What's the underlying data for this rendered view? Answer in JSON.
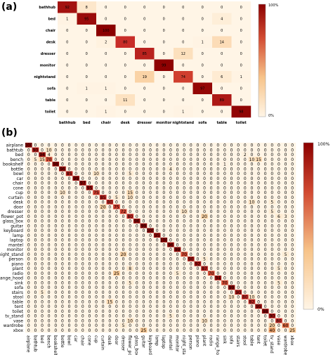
{
  "chart_data": [
    {
      "type": "heatmap",
      "panel_label": "(a)",
      "colorbar": {
        "max_label": "100%",
        "min_label": "0%",
        "low_color": "#fff5e6",
        "high_color": "#8b0000"
      },
      "rows": [
        "bathhub",
        "bed",
        "chair",
        "desk",
        "dresser",
        "monitor",
        "nightstand",
        "sofa",
        "table",
        "toilet"
      ],
      "cols": [
        "bathhub",
        "bed",
        "chair",
        "desk",
        "dresser",
        "monitor",
        "nightstand",
        "sofa",
        "table",
        "toilet"
      ],
      "values": [
        [
          92,
          8,
          0,
          0,
          0,
          0,
          0,
          0,
          0,
          0
        ],
        [
          1,
          95,
          0,
          0,
          0,
          0,
          0,
          0,
          4,
          0
        ],
        [
          0,
          0,
          100,
          0,
          0,
          0,
          0,
          0,
          0,
          0
        ],
        [
          0,
          0,
          2,
          80,
          0,
          0,
          0,
          1,
          14,
          0
        ],
        [
          0,
          0,
          0,
          0,
          85,
          0,
          12,
          0,
          0,
          0
        ],
        [
          0,
          0,
          0,
          0,
          0,
          99,
          0,
          0,
          0,
          0
        ],
        [
          0,
          0,
          0,
          0,
          19,
          0,
          74,
          0,
          6,
          1
        ],
        [
          0,
          1,
          1,
          0,
          0,
          0,
          0,
          97,
          0,
          0
        ],
        [
          0,
          0,
          0,
          11,
          0,
          0,
          0,
          0,
          89,
          0
        ],
        [
          0,
          0,
          1,
          0,
          0,
          0,
          1,
          0,
          0,
          98
        ]
      ]
    },
    {
      "type": "heatmap",
      "panel_label": "(b)",
      "colorbar": {
        "max_label": "100%",
        "min_label": "0%",
        "low_color": "#fff5e6",
        "high_color": "#8b0000"
      },
      "rows": [
        "airplane",
        "bathtub",
        "bed",
        "bench",
        "bookshelf",
        "bottle",
        "bowl",
        "car",
        "chair",
        "cone",
        "cup",
        "curtain",
        "desk",
        "door",
        "dresser",
        "flower_pot",
        "glass_box",
        "guitar",
        "keyboard",
        "lamp",
        "laptop",
        "mantel",
        "monitor",
        "night_stand",
        "person",
        "piano",
        "plant",
        "radio",
        "range_hood",
        "sink",
        "sofa",
        "stairs",
        "stool",
        "table",
        "tent",
        "toilet",
        "tv_stand",
        "vase",
        "wardrobe",
        "xbox"
      ],
      "cols": [
        "airplane",
        "bathtub",
        "bed",
        "bench",
        "bookshelf",
        "bottle",
        "bowl",
        "car",
        "chair",
        "cone",
        "cup",
        "curtain",
        "desk",
        "door",
        "dresser",
        "flower_pot",
        "glass_box",
        "guitar",
        "keyboard",
        "lamp",
        "laptop",
        "mantel",
        "monitor",
        "night_stand",
        "person",
        "piano",
        "plant",
        "radio",
        "range_hood",
        "sink",
        "sofa",
        "stairs",
        "stool",
        "table",
        "tent",
        "toilet",
        "tv_stand",
        "vase",
        "wardrobe",
        "xbox"
      ],
      "diagonal": [
        100,
        90,
        94,
        70,
        98,
        96,
        85,
        99,
        97,
        95,
        75,
        85,
        80,
        75,
        72,
        80,
        96,
        99,
        100,
        95,
        100,
        96,
        99,
        70,
        90,
        92,
        87,
        70,
        94,
        70,
        99,
        90,
        80,
        82,
        95,
        98,
        90,
        80,
        60,
        25
      ],
      "off_diagonal": [
        {
          "r": 1,
          "c": 3,
          "v": 10
        },
        {
          "r": 2,
          "c": 3,
          "v": 4
        },
        {
          "r": 2,
          "c": 32,
          "v": 2
        },
        {
          "r": 3,
          "c": 1,
          "v": 5
        },
        {
          "r": 3,
          "c": 2,
          "v": 15
        },
        {
          "r": 3,
          "c": 33,
          "v": 10
        },
        {
          "r": 3,
          "c": 34,
          "v": 15
        },
        {
          "r": 4,
          "c": 29,
          "v": 1
        },
        {
          "r": 5,
          "c": 21,
          "v": 4
        },
        {
          "r": 6,
          "c": 10,
          "v": 10
        },
        {
          "r": 6,
          "c": 15,
          "v": 5
        },
        {
          "r": 10,
          "c": 5,
          "v": 10
        },
        {
          "r": 10,
          "c": 15,
          "v": 15
        },
        {
          "r": 11,
          "c": 13,
          "v": 5
        },
        {
          "r": 11,
          "c": 15,
          "v": 10
        },
        {
          "r": 12,
          "c": 33,
          "v": 10
        },
        {
          "r": 12,
          "c": 36,
          "v": 5
        },
        {
          "r": 13,
          "c": 11,
          "v": 20
        },
        {
          "r": 14,
          "c": 23,
          "v": 10
        },
        {
          "r": 14,
          "c": 36,
          "v": 5
        },
        {
          "r": 15,
          "c": 26,
          "v": 20
        },
        {
          "r": 15,
          "c": 37,
          "v": 6
        },
        {
          "r": 15,
          "c": 38,
          "v": 3
        },
        {
          "r": 23,
          "c": 14,
          "v": 20
        },
        {
          "r": 23,
          "c": 38,
          "v": 5
        },
        {
          "r": 24,
          "c": 26,
          "v": 5
        },
        {
          "r": 26,
          "c": 15,
          "v": 8
        },
        {
          "r": 26,
          "c": 37,
          "v": 5
        },
        {
          "r": 27,
          "c": 13,
          "v": 25
        },
        {
          "r": 27,
          "c": 22,
          "v": 5
        },
        {
          "r": 29,
          "c": 15,
          "v": 5
        },
        {
          "r": 29,
          "c": 37,
          "v": 5
        },
        {
          "r": 31,
          "c": 2,
          "v": 5
        },
        {
          "r": 32,
          "c": 30,
          "v": 10
        },
        {
          "r": 32,
          "c": 33,
          "v": 10
        },
        {
          "r": 33,
          "c": 12,
          "v": 15
        },
        {
          "r": 36,
          "c": 21,
          "v": 5
        },
        {
          "r": 37,
          "c": 15,
          "v": 10
        },
        {
          "r": 37,
          "c": 26,
          "v": 10
        },
        {
          "r": 38,
          "c": 14,
          "v": 5
        },
        {
          "r": 38,
          "c": 36,
          "v": 20
        },
        {
          "r": 39,
          "c": 17,
          "v": 25
        },
        {
          "r": 39,
          "c": 36,
          "v": 40
        }
      ]
    }
  ]
}
